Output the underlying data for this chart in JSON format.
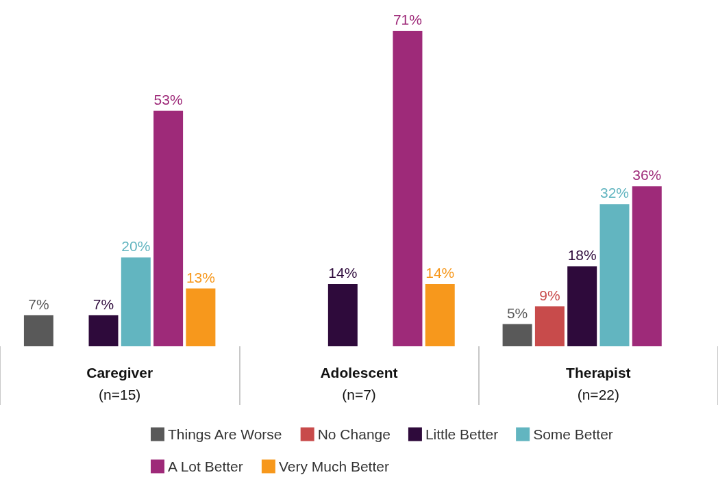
{
  "chart_data": {
    "type": "bar",
    "categories": [
      "Caregiver\n(n=15)",
      "Adolescent\n(n=7)",
      "Therapist\n(n=22)"
    ],
    "series": [
      {
        "name": "Things Are Worse",
        "color": "#595959",
        "values": [
          7,
          null,
          5
        ],
        "value_labels": [
          "7%",
          null,
          "5%"
        ]
      },
      {
        "name": "No Change",
        "color": "#c84b4b",
        "values": [
          null,
          null,
          9
        ],
        "value_labels": [
          null,
          null,
          "9%"
        ]
      },
      {
        "name": "Little Better",
        "color": "#2e0a3b",
        "values": [
          7,
          14,
          18
        ],
        "value_labels": [
          "7%",
          "14%",
          "18%"
        ]
      },
      {
        "name": "Some Better",
        "color": "#62b5c0",
        "values": [
          20,
          null,
          32
        ],
        "value_labels": [
          "20%",
          null,
          "32%"
        ]
      },
      {
        "name": "A Lot Better",
        "color": "#9e2a79",
        "values": [
          53,
          71,
          36
        ],
        "value_labels": [
          "53%",
          "71%",
          "36%"
        ]
      },
      {
        "name": "Very Much Better",
        "color": "#f7981c",
        "values": [
          13,
          14,
          null
        ],
        "value_labels": [
          "13%",
          "14%",
          null
        ]
      }
    ],
    "legend": "bottom",
    "grid": false
  }
}
